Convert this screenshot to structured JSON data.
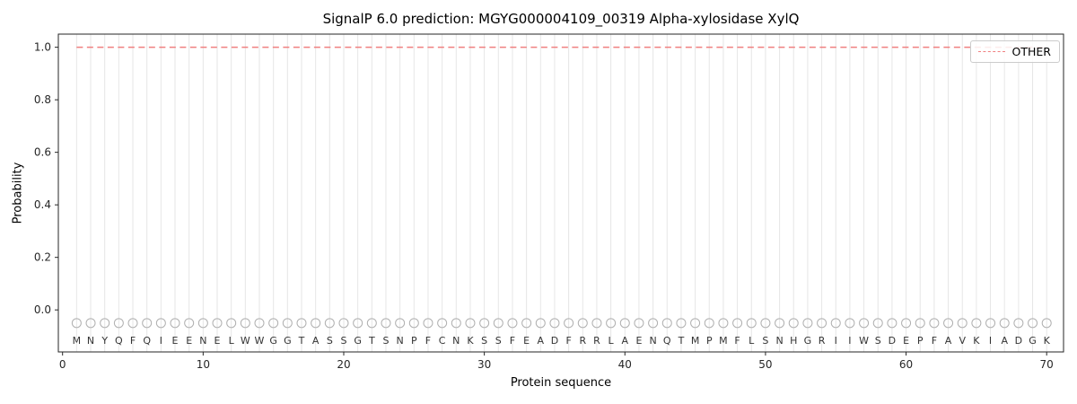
{
  "figure": {
    "title": "SignalP 6.0 prediction: MGYG000004109_00319 Alpha-xylosidase XylQ",
    "xlabel": "Protein sequence",
    "ylabel": "Probability"
  },
  "legend": {
    "position": "upper right",
    "label": "OTHER",
    "line_color": "#f08080",
    "line_style": "dashed"
  },
  "chart_data": {
    "type": "line",
    "title": "SignalP 6.0 prediction: MGYG000004109_00319 Alpha-xylosidase XylQ",
    "xlabel": "Protein sequence",
    "ylabel": "Probability",
    "xlim": [
      -0.3,
      71.2
    ],
    "ylim": [
      -0.16,
      1.05
    ],
    "xticks": [
      0,
      10,
      20,
      30,
      40,
      50,
      60,
      70
    ],
    "yticks": [
      0.0,
      0.2,
      0.4,
      0.6,
      0.8,
      1.0
    ],
    "grid": {
      "vertical_per_residue": true,
      "color": "#e6e6e6"
    },
    "series": [
      {
        "name": "OTHER",
        "style": "dashed",
        "color": "#f08080",
        "y_value": 1.0,
        "x_start": 1,
        "x_end": 70
      }
    ],
    "sequence": "MNYQFQIEENELWWGGTASSGTSNPFCNKSSFEADFRRLAENQTMPMFLSNHGRIIWSDEPFAVKIADGK",
    "sequence_length": 70,
    "marker_symbol": "o",
    "marker_color": "#b0b0b0",
    "marker_row_y": -0.05,
    "sequence_row_y": -0.115
  }
}
